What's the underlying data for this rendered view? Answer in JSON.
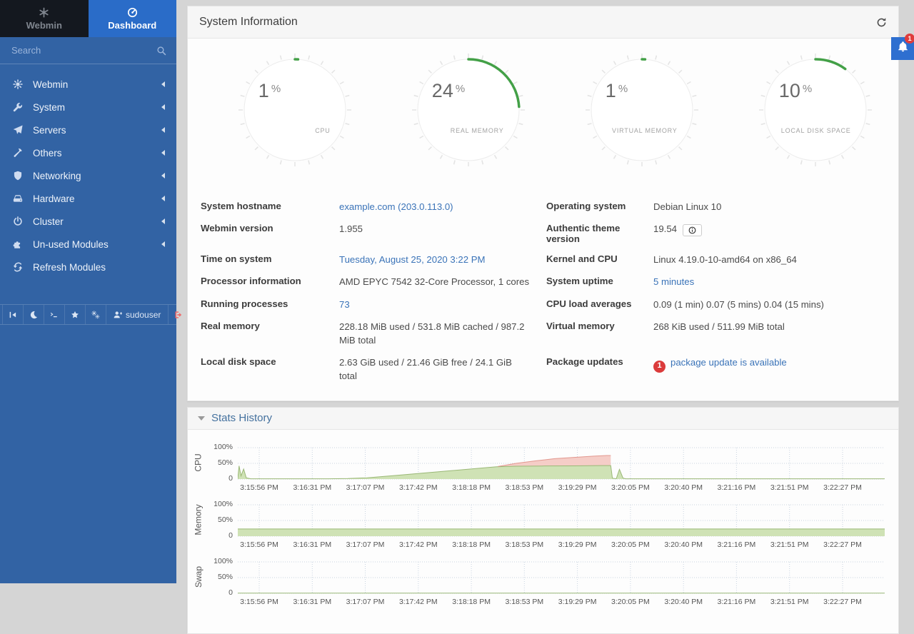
{
  "theme": {
    "sidebar_bg": "#3263a4",
    "dashboard_tab_bg": "#2a6cc8",
    "webmin_tab_bg": "#14181f",
    "link_color": "#3a73b8",
    "gauge_arc_color": "#43a047",
    "badge_red": "#db3b3b",
    "chart_green_fill": "#cfe2b5",
    "chart_green_stroke": "#9ab876",
    "chart_red_fill": "#f5cdc7",
    "chart_red_stroke": "#e2988f",
    "chart_grid": "#c9d4e0"
  },
  "sidebar": {
    "tabs": [
      {
        "label": "Webmin",
        "icon": "webmin-logo-icon"
      },
      {
        "label": "Dashboard",
        "icon": "dashboard-icon"
      }
    ],
    "search": {
      "placeholder": "Search"
    },
    "items": [
      {
        "label": "Webmin",
        "icon": "gear-icon",
        "chevron": true
      },
      {
        "label": "System",
        "icon": "wrench-icon",
        "chevron": true
      },
      {
        "label": "Servers",
        "icon": "send-icon",
        "chevron": true
      },
      {
        "label": "Others",
        "icon": "hammer-icon",
        "chevron": true
      },
      {
        "label": "Networking",
        "icon": "shield-icon",
        "chevron": true
      },
      {
        "label": "Hardware",
        "icon": "hdd-icon",
        "chevron": true
      },
      {
        "label": "Cluster",
        "icon": "power-icon",
        "chevron": true
      },
      {
        "label": "Un-used Modules",
        "icon": "puzzle-icon",
        "chevron": true
      },
      {
        "label": "Refresh Modules",
        "icon": "refresh-icon",
        "chevron": false
      }
    ],
    "footer": {
      "items": [
        {
          "name": "collapse-sidebar-button",
          "icon": "collapse-icon"
        },
        {
          "name": "night-mode-button",
          "icon": "moon-icon"
        },
        {
          "name": "terminal-button",
          "icon": "terminal-icon"
        },
        {
          "name": "favorites-button",
          "icon": "star-icon"
        },
        {
          "name": "settings-button",
          "icon": "gears-icon"
        },
        {
          "name": "user-menu-button",
          "icon": "user-icon",
          "label": "sudouser"
        },
        {
          "name": "logout-button",
          "icon": "logout-icon",
          "accent": "#ef6b6b"
        }
      ]
    }
  },
  "notifications": {
    "count": "1"
  },
  "system_info": {
    "title": "System Information",
    "gauges": [
      {
        "percent": 1,
        "display": "1",
        "unit": "%",
        "label": "CPU"
      },
      {
        "percent": 24,
        "display": "24",
        "unit": "%",
        "label": "REAL MEMORY"
      },
      {
        "percent": 1,
        "display": "1",
        "unit": "%",
        "label": "VIRTUAL MEMORY"
      },
      {
        "percent": 10,
        "display": "10",
        "unit": "%",
        "label": "LOCAL DISK SPACE"
      }
    ],
    "rows": [
      {
        "left": {
          "label": "System hostname",
          "value": "example.com (203.0.113.0)",
          "link": true
        },
        "right": {
          "label": "Operating system",
          "value": "Debian Linux 10"
        }
      },
      {
        "left": {
          "label": "Webmin version",
          "value": "1.955"
        },
        "right": {
          "label": "Authentic theme version",
          "value": "19.54",
          "info_button": true
        }
      },
      {
        "left": {
          "label": "Time on system",
          "value": "Tuesday, August 25, 2020 3:22 PM",
          "link": true
        },
        "right": {
          "label": "Kernel and CPU",
          "value": "Linux 4.19.0-10-amd64 on x86_64"
        }
      },
      {
        "left": {
          "label": "Processor information",
          "value": "AMD EPYC 7542 32-Core Processor, 1 cores"
        },
        "right": {
          "label": "System uptime",
          "value": "5 minutes",
          "link": true
        }
      },
      {
        "left": {
          "label": "Running processes",
          "value": "73",
          "link": true
        },
        "right": {
          "label": "CPU load averages",
          "value": "0.09 (1 min) 0.07 (5 mins) 0.04 (15 mins)"
        }
      },
      {
        "left": {
          "label": "Real memory",
          "value": "228.18 MiB used / 531.8 MiB cached / 987.2 MiB total"
        },
        "right": {
          "label": "Virtual memory",
          "value": "268 KiB used / 511.99 MiB total"
        }
      },
      {
        "left": {
          "label": "Local disk space",
          "value": "2.63 GiB used / 21.46 GiB free / 24.1 GiB total"
        },
        "right": {
          "label": "Package updates",
          "value": "package update is available",
          "link": true,
          "badge": "1"
        }
      }
    ]
  },
  "stats": {
    "title": "Stats History",
    "time_labels": [
      "3:15:56 PM",
      "3:16:31 PM",
      "3:17:07 PM",
      "3:17:42 PM",
      "3:18:18 PM",
      "3:18:53 PM",
      "3:19:29 PM",
      "3:20:05 PM",
      "3:20:40 PM",
      "3:21:16 PM",
      "3:21:51 PM",
      "3:22:27 PM"
    ],
    "y_ticks": [
      "100%",
      "50%",
      "0"
    ],
    "charts": [
      {
        "name": "CPU",
        "type": "area",
        "green_points": [
          [
            0,
            1
          ],
          [
            0.002,
            42
          ],
          [
            0.005,
            10
          ],
          [
            0.009,
            32
          ],
          [
            0.013,
            4
          ],
          [
            0.02,
            1
          ],
          [
            0.06,
            1
          ],
          [
            0.1,
            1
          ],
          [
            0.14,
            1
          ],
          [
            0.17,
            1.5
          ],
          [
            0.2,
            4
          ],
          [
            0.24,
            11
          ],
          [
            0.28,
            18
          ],
          [
            0.32,
            25
          ],
          [
            0.36,
            32
          ],
          [
            0.4,
            39
          ],
          [
            0.43,
            41
          ],
          [
            0.47,
            41.5
          ],
          [
            0.52,
            42
          ],
          [
            0.56,
            43
          ],
          [
            0.572,
            43
          ],
          [
            0.5765,
            43
          ],
          [
            0.579,
            3
          ],
          [
            0.585,
            1
          ],
          [
            0.59,
            31
          ],
          [
            0.5955,
            3
          ],
          [
            0.6,
            1
          ],
          [
            0.65,
            1
          ],
          [
            0.75,
            1
          ],
          [
            0.85,
            1
          ],
          [
            1,
            1
          ]
        ],
        "red_top_points": [
          [
            0.402,
            40
          ],
          [
            0.43,
            50
          ],
          [
            0.46,
            58
          ],
          [
            0.49,
            65
          ],
          [
            0.52,
            69
          ],
          [
            0.55,
            73
          ],
          [
            0.57,
            75
          ],
          [
            0.5765,
            75
          ]
        ]
      },
      {
        "name": "Memory",
        "type": "area",
        "green_points": [
          [
            0,
            23
          ],
          [
            1,
            23
          ]
        ],
        "red_top_points": null
      },
      {
        "name": "Swap",
        "type": "area",
        "green_points": [
          [
            0,
            0.5
          ],
          [
            1,
            0.5
          ]
        ],
        "red_top_points": null
      }
    ]
  }
}
